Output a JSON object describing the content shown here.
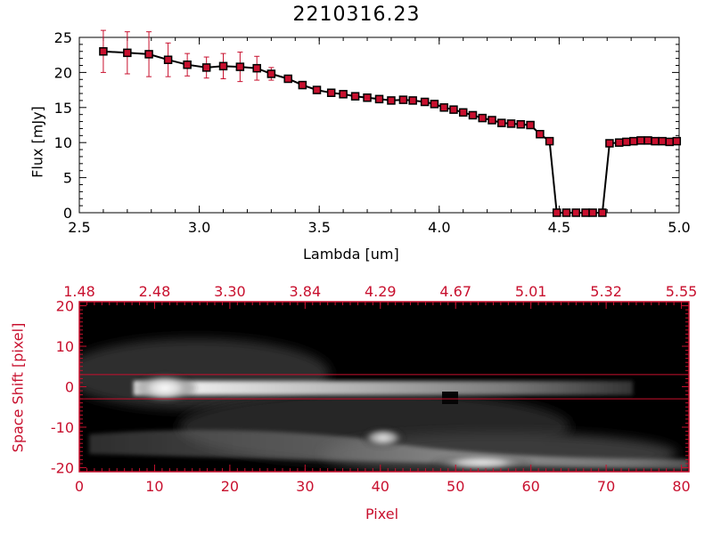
{
  "chart_data": [
    {
      "type": "line",
      "title": "2210316.23",
      "xlabel": "Lambda [um]",
      "ylabel": "Flux [mJy]",
      "xlim": [
        2.5,
        5.0
      ],
      "ylim": [
        0,
        25
      ],
      "xticks": [
        "2.5",
        "3.0",
        "3.5",
        "4.0",
        "4.5",
        "5.0"
      ],
      "yticks": [
        "0",
        "5",
        "10",
        "15",
        "20",
        "25"
      ],
      "series": [
        {
          "x": [
            2.6,
            2.7,
            2.79,
            2.87,
            2.95,
            3.03,
            3.1,
            3.17,
            3.24,
            3.3,
            3.37,
            3.43,
            3.49,
            3.55,
            3.6,
            3.65,
            3.7,
            3.75,
            3.8,
            3.85,
            3.89,
            3.94,
            3.98,
            4.02,
            4.06,
            4.1,
            4.14,
            4.18,
            4.22,
            4.26,
            4.3,
            4.34,
            4.38,
            4.42,
            4.46,
            4.49,
            4.53,
            4.57,
            4.61,
            4.64,
            4.68,
            4.71,
            4.75,
            4.78,
            4.81,
            4.84,
            4.87,
            4.9,
            4.93,
            4.96,
            4.99
          ],
          "y": [
            23.0,
            22.8,
            22.6,
            21.8,
            21.1,
            20.7,
            20.9,
            20.8,
            20.6,
            19.8,
            19.1,
            18.2,
            17.5,
            17.1,
            16.9,
            16.6,
            16.4,
            16.2,
            16.0,
            16.1,
            16.0,
            15.8,
            15.5,
            15.0,
            14.7,
            14.3,
            13.9,
            13.5,
            13.2,
            12.8,
            12.7,
            12.6,
            12.5,
            11.2,
            10.2,
            0.0,
            0.0,
            0.0,
            0.0,
            0.0,
            0.0,
            9.9,
            10.0,
            10.1,
            10.2,
            10.3,
            10.3,
            10.2,
            10.2,
            10.1,
            10.2
          ],
          "yerr": [
            3.0,
            3.0,
            3.2,
            2.4,
            1.6,
            1.5,
            1.8,
            2.1,
            1.7,
            0.9,
            0.5,
            0.3,
            0.2,
            0.2,
            0.2,
            0.2,
            0.2,
            0.2,
            0.2,
            0.2,
            0.2,
            0.2,
            0.2,
            0.2,
            0.2,
            0.2,
            0.2,
            0.2,
            0.2,
            0.2,
            0.2,
            0.2,
            0.2,
            0.2,
            0.2,
            0.0,
            0.0,
            0.0,
            0.0,
            0.0,
            0.0,
            0.2,
            0.4,
            0.5,
            0.5,
            0.5,
            0.5,
            0.5,
            0.5,
            0.5,
            0.5
          ]
        }
      ],
      "line_color": "#000000",
      "marker_color": "#c8102e",
      "errorbar_color": "#c8102e"
    },
    {
      "type": "heatmap",
      "xlabel": "Pixel",
      "ylabel": "Space Shift [pixel]",
      "xlim": [
        0,
        81
      ],
      "ylim": [
        -21,
        21
      ],
      "xticks": [
        "0",
        "10",
        "20",
        "30",
        "40",
        "50",
        "60",
        "70",
        "80"
      ],
      "yticks": [
        "-20",
        "-10",
        "0",
        "10",
        "20"
      ],
      "top_axis_ticks": [
        "1.48",
        "2.48",
        "3.30",
        "3.84",
        "4.29",
        "4.67",
        "5.01",
        "5.32",
        "5.55"
      ],
      "extraction_lines_y": [
        3,
        -3
      ],
      "axis_color": "#c8102e",
      "colormap": "grayscale"
    }
  ]
}
